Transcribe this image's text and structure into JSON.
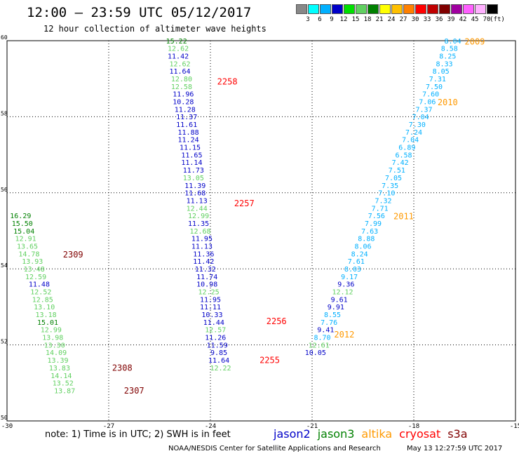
{
  "header": {
    "title": "12:00 – 23:59 UTC 05/12/2017",
    "subtitle": "12 hour collection of altimeter wave heights"
  },
  "colorbar": {
    "unit_label": "(ft)",
    "swatches": [
      {
        "color": "#888888",
        "label": "3"
      },
      {
        "color": "#00ffff",
        "label": "6"
      },
      {
        "color": "#00b0ff",
        "label": "9"
      },
      {
        "color": "#0000c8",
        "label": "12"
      },
      {
        "color": "#00e000",
        "label": "15"
      },
      {
        "color": "#60d060",
        "label": "18"
      },
      {
        "color": "#008000",
        "label": "21"
      },
      {
        "color": "#ffff00",
        "label": "24"
      },
      {
        "color": "#ffc000",
        "label": "27"
      },
      {
        "color": "#ff8000",
        "label": "30"
      },
      {
        "color": "#ff0000",
        "label": "33"
      },
      {
        "color": "#c00000",
        "label": "36"
      },
      {
        "color": "#800000",
        "label": "39"
      },
      {
        "color": "#a000a0",
        "label": "42"
      },
      {
        "color": "#ff60ff",
        "label": "45"
      },
      {
        "color": "#ffb0ff",
        "label": "70"
      },
      {
        "color": "#000000",
        "label": ""
      }
    ]
  },
  "map": {
    "lon_ticks": [
      "-30",
      "-27",
      "-24",
      "-21",
      "-18",
      "-15"
    ],
    "lat_ticks": [
      "50",
      "52",
      "54",
      "56",
      "58",
      "60"
    ],
    "lon_range": [
      -30,
      -15
    ],
    "lat_range": [
      50,
      60
    ]
  },
  "tracks": [
    {
      "name": "track-left",
      "color_key": "jason3",
      "points": [
        {
          "lon": -29.6,
          "lat": 55.33,
          "v": "16.29",
          "c": "#008000"
        },
        {
          "lon": -29.55,
          "lat": 55.13,
          "v": "15.50",
          "c": "#008000"
        },
        {
          "lon": -29.5,
          "lat": 54.93,
          "v": "15.04",
          "c": "#008000"
        },
        {
          "lon": -29.45,
          "lat": 54.73,
          "v": "12.91",
          "c": "#60d060"
        },
        {
          "lon": -29.4,
          "lat": 54.53,
          "v": "13.65",
          "c": "#60d060"
        },
        {
          "lon": -29.35,
          "lat": 54.33,
          "v": "14.78",
          "c": "#60d060"
        },
        {
          "lon": -29.25,
          "lat": 54.13,
          "v": "13.93",
          "c": "#60d060"
        },
        {
          "lon": -29.2,
          "lat": 53.93,
          "v": "13.48",
          "c": "#60d060"
        },
        {
          "lon": -29.15,
          "lat": 53.73,
          "v": "12.59",
          "c": "#60d060"
        },
        {
          "lon": -29.05,
          "lat": 53.53,
          "v": "11.48",
          "c": "#0000c8"
        },
        {
          "lon": -29.0,
          "lat": 53.33,
          "v": "12.52",
          "c": "#60d060"
        },
        {
          "lon": -28.95,
          "lat": 53.13,
          "v": "12.85",
          "c": "#60d060"
        },
        {
          "lon": -28.9,
          "lat": 52.93,
          "v": "13.10",
          "c": "#60d060"
        },
        {
          "lon": -28.85,
          "lat": 52.73,
          "v": "13.18",
          "c": "#60d060"
        },
        {
          "lon": -28.8,
          "lat": 52.53,
          "v": "15.01",
          "c": "#008000"
        },
        {
          "lon": -28.7,
          "lat": 52.33,
          "v": "12.99",
          "c": "#60d060"
        },
        {
          "lon": -28.65,
          "lat": 52.13,
          "v": "13.98",
          "c": "#60d060"
        },
        {
          "lon": -28.6,
          "lat": 51.93,
          "v": "13.30",
          "c": "#60d060"
        },
        {
          "lon": -28.55,
          "lat": 51.73,
          "v": "14.09",
          "c": "#60d060"
        },
        {
          "lon": -28.5,
          "lat": 51.53,
          "v": "13.39",
          "c": "#60d060"
        },
        {
          "lon": -28.45,
          "lat": 51.33,
          "v": "13.83",
          "c": "#60d060"
        },
        {
          "lon": -28.4,
          "lat": 51.13,
          "v": "14.14",
          "c": "#60d060"
        },
        {
          "lon": -28.35,
          "lat": 50.93,
          "v": "13.52",
          "c": "#60d060"
        },
        {
          "lon": -28.3,
          "lat": 50.73,
          "v": "13.87",
          "c": "#60d060"
        }
      ]
    },
    {
      "name": "track-middle",
      "color_key": "jason2",
      "points": [
        {
          "lon": -25.0,
          "lat": 59.93,
          "v": "15.22",
          "c": "#008000"
        },
        {
          "lon": -24.95,
          "lat": 59.73,
          "v": "12.62",
          "c": "#60d060"
        },
        {
          "lon": -24.95,
          "lat": 59.53,
          "v": "11.42",
          "c": "#0000c8"
        },
        {
          "lon": -24.9,
          "lat": 59.33,
          "v": "12.62",
          "c": "#60d060"
        },
        {
          "lon": -24.9,
          "lat": 59.13,
          "v": "11.64",
          "c": "#0000c8"
        },
        {
          "lon": -24.85,
          "lat": 58.93,
          "v": "12.80",
          "c": "#60d060"
        },
        {
          "lon": -24.85,
          "lat": 58.73,
          "v": "12.58",
          "c": "#60d060"
        },
        {
          "lon": -24.8,
          "lat": 58.53,
          "v": "11.96",
          "c": "#0000c8"
        },
        {
          "lon": -24.8,
          "lat": 58.33,
          "v": "10.28",
          "c": "#0000c8"
        },
        {
          "lon": -24.75,
          "lat": 58.13,
          "v": "11.28",
          "c": "#0000c8"
        },
        {
          "lon": -24.7,
          "lat": 57.93,
          "v": "11.37",
          "c": "#0000c8"
        },
        {
          "lon": -24.7,
          "lat": 57.73,
          "v": "11.61",
          "c": "#0000c8"
        },
        {
          "lon": -24.65,
          "lat": 57.53,
          "v": "11.88",
          "c": "#0000c8"
        },
        {
          "lon": -24.65,
          "lat": 57.33,
          "v": "11.24",
          "c": "#0000c8"
        },
        {
          "lon": -24.6,
          "lat": 57.13,
          "v": "11.15",
          "c": "#0000c8"
        },
        {
          "lon": -24.55,
          "lat": 56.93,
          "v": "11.65",
          "c": "#0000c8"
        },
        {
          "lon": -24.55,
          "lat": 56.73,
          "v": "11.14",
          "c": "#0000c8"
        },
        {
          "lon": -24.5,
          "lat": 56.53,
          "v": "11.73",
          "c": "#0000c8"
        },
        {
          "lon": -24.5,
          "lat": 56.33,
          "v": "13.05",
          "c": "#60d060"
        },
        {
          "lon": -24.45,
          "lat": 56.13,
          "v": "11.39",
          "c": "#0000c8"
        },
        {
          "lon": -24.45,
          "lat": 55.93,
          "v": "11.68",
          "c": "#0000c8"
        },
        {
          "lon": -24.4,
          "lat": 55.73,
          "v": "11.13",
          "c": "#0000c8"
        },
        {
          "lon": -24.4,
          "lat": 55.53,
          "v": "12.44",
          "c": "#60d060"
        },
        {
          "lon": -24.35,
          "lat": 55.33,
          "v": "12.99",
          "c": "#60d060"
        },
        {
          "lon": -24.35,
          "lat": 55.13,
          "v": "11.35",
          "c": "#0000c8"
        },
        {
          "lon": -24.3,
          "lat": 54.93,
          "v": "12.68",
          "c": "#60d060"
        },
        {
          "lon": -24.25,
          "lat": 54.73,
          "v": "11.95",
          "c": "#0000c8"
        },
        {
          "lon": -24.25,
          "lat": 54.53,
          "v": "11.13",
          "c": "#0000c8"
        },
        {
          "lon": -24.2,
          "lat": 54.33,
          "v": "11.36",
          "c": "#0000c8"
        },
        {
          "lon": -24.2,
          "lat": 54.13,
          "v": "11.42",
          "c": "#0000c8"
        },
        {
          "lon": -24.15,
          "lat": 53.93,
          "v": "11.32",
          "c": "#0000c8"
        },
        {
          "lon": -24.1,
          "lat": 53.73,
          "v": "11.74",
          "c": "#0000c8"
        },
        {
          "lon": -24.1,
          "lat": 53.53,
          "v": "10.98",
          "c": "#0000c8"
        },
        {
          "lon": -24.05,
          "lat": 53.33,
          "v": "12.25",
          "c": "#60d060"
        },
        {
          "lon": -24.0,
          "lat": 53.13,
          "v": "11.95",
          "c": "#0000c8"
        },
        {
          "lon": -24.0,
          "lat": 52.93,
          "v": "11.11",
          "c": "#0000c8"
        },
        {
          "lon": -23.95,
          "lat": 52.73,
          "v": "10.33",
          "c": "#0000c8"
        },
        {
          "lon": -23.9,
          "lat": 52.53,
          "v": "11.44",
          "c": "#0000c8"
        },
        {
          "lon": -23.85,
          "lat": 52.33,
          "v": "12.57",
          "c": "#60d060"
        },
        {
          "lon": -23.85,
          "lat": 52.13,
          "v": "11.26",
          "c": "#0000c8"
        },
        {
          "lon": -23.8,
          "lat": 51.93,
          "v": "11.59",
          "c": "#0000c8"
        },
        {
          "lon": -23.75,
          "lat": 51.73,
          "v": "9.85",
          "c": "#0000c8"
        },
        {
          "lon": -23.75,
          "lat": 51.53,
          "v": "11.64",
          "c": "#0000c8"
        },
        {
          "lon": -23.7,
          "lat": 51.33,
          "v": "12.22",
          "c": "#60d060"
        }
      ]
    },
    {
      "name": "track-right",
      "color_key": "jason2",
      "points": [
        {
          "lon": -16.85,
          "lat": 59.93,
          "v": "8.04",
          "c": "#00b0ff"
        },
        {
          "lon": -16.95,
          "lat": 59.73,
          "v": "8.58",
          "c": "#00b0ff"
        },
        {
          "lon": -17.0,
          "lat": 59.53,
          "v": "8.25",
          "c": "#00b0ff"
        },
        {
          "lon": -17.1,
          "lat": 59.33,
          "v": "8.33",
          "c": "#00b0ff"
        },
        {
          "lon": -17.2,
          "lat": 59.13,
          "v": "8.05",
          "c": "#00b0ff"
        },
        {
          "lon": -17.3,
          "lat": 58.93,
          "v": "7.31",
          "c": "#00b0ff"
        },
        {
          "lon": -17.4,
          "lat": 58.73,
          "v": "7.50",
          "c": "#00b0ff"
        },
        {
          "lon": -17.5,
          "lat": 58.53,
          "v": "7.60",
          "c": "#00b0ff"
        },
        {
          "lon": -17.6,
          "lat": 58.33,
          "v": "7.06",
          "c": "#00b0ff"
        },
        {
          "lon": -17.7,
          "lat": 58.13,
          "v": "7.37",
          "c": "#00b0ff"
        },
        {
          "lon": -17.8,
          "lat": 57.93,
          "v": "7.04",
          "c": "#00b0ff"
        },
        {
          "lon": -17.9,
          "lat": 57.73,
          "v": "7.30",
          "c": "#00b0ff"
        },
        {
          "lon": -18.0,
          "lat": 57.53,
          "v": "7.24",
          "c": "#00b0ff"
        },
        {
          "lon": -18.1,
          "lat": 57.33,
          "v": "7.04",
          "c": "#00b0ff"
        },
        {
          "lon": -18.2,
          "lat": 57.13,
          "v": "6.89",
          "c": "#00b0ff"
        },
        {
          "lon": -18.3,
          "lat": 56.93,
          "v": "6.58",
          "c": "#00b0ff"
        },
        {
          "lon": -18.4,
          "lat": 56.73,
          "v": "7.42",
          "c": "#00b0ff"
        },
        {
          "lon": -18.5,
          "lat": 56.53,
          "v": "7.51",
          "c": "#00b0ff"
        },
        {
          "lon": -18.6,
          "lat": 56.33,
          "v": "7.05",
          "c": "#00b0ff"
        },
        {
          "lon": -18.7,
          "lat": 56.13,
          "v": "7.35",
          "c": "#00b0ff"
        },
        {
          "lon": -18.8,
          "lat": 55.93,
          "v": "7.10",
          "c": "#00b0ff"
        },
        {
          "lon": -18.9,
          "lat": 55.73,
          "v": "7.32",
          "c": "#00b0ff"
        },
        {
          "lon": -19.0,
          "lat": 55.53,
          "v": "7.71",
          "c": "#00b0ff"
        },
        {
          "lon": -19.1,
          "lat": 55.33,
          "v": "7.56",
          "c": "#00b0ff"
        },
        {
          "lon": -19.2,
          "lat": 55.13,
          "v": "7.99",
          "c": "#00b0ff"
        },
        {
          "lon": -19.3,
          "lat": 54.93,
          "v": "7.63",
          "c": "#00b0ff"
        },
        {
          "lon": -19.4,
          "lat": 54.73,
          "v": "8.88",
          "c": "#00b0ff"
        },
        {
          "lon": -19.5,
          "lat": 54.53,
          "v": "8.06",
          "c": "#00b0ff"
        },
        {
          "lon": -19.6,
          "lat": 54.33,
          "v": "8.24",
          "c": "#00b0ff"
        },
        {
          "lon": -19.7,
          "lat": 54.13,
          "v": "7.61",
          "c": "#00b0ff"
        },
        {
          "lon": -19.8,
          "lat": 53.93,
          "v": "8.03",
          "c": "#00b0ff"
        },
        {
          "lon": -19.9,
          "lat": 53.73,
          "v": "9.17",
          "c": "#00b0ff"
        },
        {
          "lon": -20.0,
          "lat": 53.53,
          "v": "9.36",
          "c": "#0000c8"
        },
        {
          "lon": -20.1,
          "lat": 53.33,
          "v": "12.12",
          "c": "#60d060"
        },
        {
          "lon": -20.2,
          "lat": 53.13,
          "v": "9.61",
          "c": "#0000c8"
        },
        {
          "lon": -20.3,
          "lat": 52.93,
          "v": "9.91",
          "c": "#0000c8"
        },
        {
          "lon": -20.4,
          "lat": 52.73,
          "v": "8.55",
          "c": "#00b0ff"
        },
        {
          "lon": -20.5,
          "lat": 52.53,
          "v": "7.76",
          "c": "#00b0ff"
        },
        {
          "lon": -20.6,
          "lat": 52.33,
          "v": "9.41",
          "c": "#0000c8"
        },
        {
          "lon": -20.7,
          "lat": 52.13,
          "v": "8.70",
          "c": "#00b0ff"
        },
        {
          "lon": -20.8,
          "lat": 51.93,
          "v": "12.61",
          "c": "#60d060"
        },
        {
          "lon": -20.9,
          "lat": 51.73,
          "v": "10.05",
          "c": "#0000c8"
        }
      ]
    }
  ],
  "time_labels": [
    {
      "text": "2258",
      "lon": -23.8,
      "lat": 58.85,
      "color": "#ff0000"
    },
    {
      "text": "2257",
      "lon": -23.3,
      "lat": 55.65,
      "color": "#ff0000"
    },
    {
      "text": "2256",
      "lon": -22.35,
      "lat": 52.55,
      "color": "#ff0000"
    },
    {
      "text": "2255",
      "lon": -22.55,
      "lat": 51.52,
      "color": "#ff0000"
    },
    {
      "text": "2309",
      "lon": -28.35,
      "lat": 54.3,
      "color": "#800000"
    },
    {
      "text": "2308",
      "lon": -26.9,
      "lat": 51.32,
      "color": "#800000"
    },
    {
      "text": "2307",
      "lon": -26.55,
      "lat": 50.72,
      "color": "#800000"
    },
    {
      "text": "2009",
      "lon": -16.5,
      "lat": 59.9,
      "color": "#ff9900"
    },
    {
      "text": "2010",
      "lon": -17.3,
      "lat": 58.3,
      "color": "#ff9900"
    },
    {
      "text": "2011",
      "lon": -18.6,
      "lat": 55.3,
      "color": "#ff9900"
    },
    {
      "text": "2012",
      "lon": -20.35,
      "lat": 52.2,
      "color": "#ff9900"
    }
  ],
  "footer": {
    "note": "note:  1) Time is in UTC; 2) SWH is in feet",
    "satellites": [
      {
        "name": "jason2",
        "color": "#0000c8"
      },
      {
        "name": "jason3",
        "color": "#008000"
      },
      {
        "name": "altika",
        "color": "#ff9900"
      },
      {
        "name": "cryosat",
        "color": "#ff0000"
      },
      {
        "name": "s3a",
        "color": "#800000"
      }
    ],
    "credit": "NOAA/NESDIS Center for Satellite Applications and Research",
    "timestamp": "May 13 12:27:59 UTC 2017"
  }
}
